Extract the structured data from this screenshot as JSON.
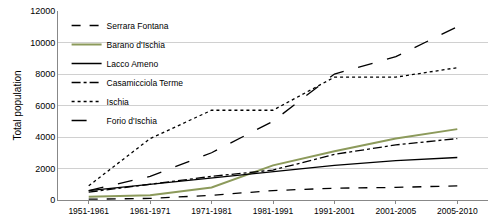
{
  "chart_data": {
    "type": "line",
    "y_label": "Total population",
    "categories": [
      "1951-1961",
      "1961-1971",
      "1971-1981",
      "1981-1991",
      "1991-2001",
      "2001-2005",
      "2005-2010"
    ],
    "series": [
      {
        "name": "Serrara Fontana",
        "color": "#000000",
        "line_style": "dash",
        "values": [
          50,
          100,
          300,
          600,
          750,
          800,
          900
        ]
      },
      {
        "name": "Barano d'Ischia",
        "color": "#8c9a5b",
        "line_style": "solid",
        "values": [
          200,
          300,
          800,
          2200,
          3100,
          3900,
          4500
        ]
      },
      {
        "name": "Lacco Ameno",
        "color": "#000000",
        "line_style": "solid",
        "values": [
          600,
          1000,
          1400,
          1800,
          2200,
          2500,
          2700
        ]
      },
      {
        "name": "Casamicciola Terme",
        "color": "#000000",
        "line_style": "dashdot",
        "values": [
          500,
          1000,
          1500,
          1900,
          2900,
          3500,
          3900
        ]
      },
      {
        "name": "Ischia",
        "color": "#000000",
        "line_style": "dot",
        "values": [
          900,
          3900,
          5700,
          5700,
          7800,
          7800,
          8400
        ]
      },
      {
        "name": "Forio d'Ischia",
        "color": "#000000",
        "line_style": "longdash",
        "values": [
          600,
          1500,
          3000,
          5000,
          8000,
          9100,
          11000
        ]
      }
    ],
    "ylim": [
      0,
      12000
    ],
    "yticks": [
      0,
      2000,
      4000,
      6000,
      8000,
      10000,
      12000
    ],
    "grid": true,
    "legend": "upper left"
  }
}
